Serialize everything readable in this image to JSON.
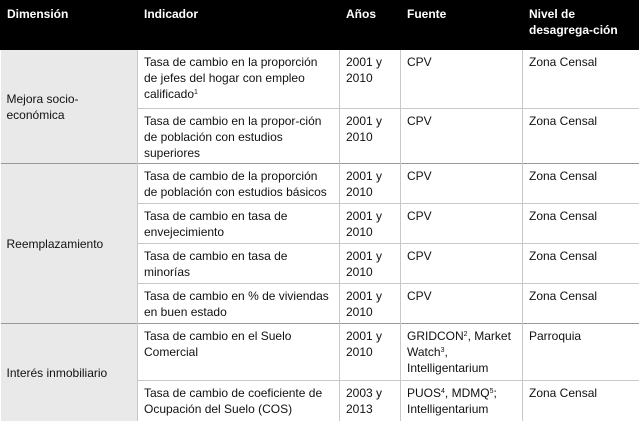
{
  "header": {
    "col1": "Dimensión",
    "col2": "Indicador",
    "col3": "Años",
    "col4": "Fuente",
    "col5": "Nivel de desagrega-ción"
  },
  "groups": [
    {
      "dimension": "Mejora socio-económica",
      "rows": [
        {
          "indicator": "Tasa de cambio en la proporción de jefes del hogar con empleo calificado",
          "indicator_sup": "1",
          "years": "2001 y 2010",
          "source": "CPV",
          "level": "Zona Censal"
        },
        {
          "indicator": "Tasa de cambio en la propor-ción de población con estudios superiores",
          "years": "2001 y 2010",
          "source": "CPV",
          "level": "Zona Censal"
        }
      ]
    },
    {
      "dimension": "Reemplazamiento",
      "rows": [
        {
          "indicator": "Tasa de cambio de la proporción de población con estudios básicos",
          "years": "2001 y 2010",
          "source": "CPV",
          "level": "Zona Censal"
        },
        {
          "indicator": "Tasa de cambio en tasa de envejecimiento",
          "years": "2001 y 2010",
          "source": "CPV",
          "level": "Zona Censal"
        },
        {
          "indicator": "Tasa de cambio en tasa de minorías",
          "years": "2001 y 2010",
          "source": "CPV",
          "level": "Zona Censal"
        },
        {
          "indicator": "Tasa de cambio en % de viviendas en buen estado",
          "years": "2001 y 2010",
          "source": "CPV",
          "level": "Zona Censal"
        }
      ]
    },
    {
      "dimension": "Interés inmobiliario",
      "rows": [
        {
          "indicator": "Tasa de cambio en el Suelo Comercial",
          "years": "2001 y 2010",
          "source_parts": [
            "GRIDCON",
            "2",
            ", Market Watch",
            "3",
            ", Intelligentarium"
          ],
          "level": "Parroquia"
        },
        {
          "indicator": "Tasa de cambio de coeficiente de Ocupación del Suelo (COS)",
          "years": "2003 y 2013",
          "source_parts": [
            "PUOS",
            "4",
            ", MDMQ",
            "5",
            "; Intelligentarium"
          ],
          "level": "Zona Censal"
        }
      ]
    }
  ]
}
